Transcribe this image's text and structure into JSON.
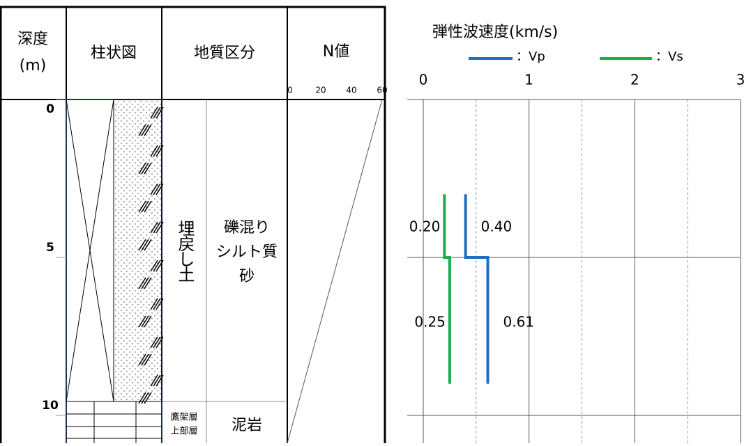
{
  "log": {
    "headers": {
      "depth": [
        "深度",
        "(m)"
      ],
      "column": "柱状図",
      "geology": "地質区分",
      "n_value": "N値"
    },
    "n_ticks": [
      0,
      20,
      40,
      60
    ],
    "layers": [
      {
        "unit": "埋戻し土",
        "lithology": [
          "礫混り",
          "シルト質",
          "砂"
        ]
      },
      {
        "unit": [
          "鷹架層",
          "上部層"
        ],
        "lithology": "泥岩"
      }
    ]
  },
  "chart_data": {
    "type": "step",
    "title": "弾性波速度(km/s)",
    "depth_bounds": [
      3,
      5,
      9
    ],
    "series": [
      {
        "name": "：Vp",
        "color": "#1f6fbf",
        "values": [
          0.4,
          0.61
        ],
        "value_labels": [
          "0.40",
          "0.61"
        ]
      },
      {
        "name": "：Vs",
        "color": "#1aae4e",
        "values": [
          0.2,
          0.25
        ],
        "value_labels": [
          "0.20",
          "0.25"
        ]
      }
    ],
    "xlim": [
      0,
      3
    ],
    "xticks": [
      0,
      1,
      2,
      3
    ],
    "minor_xticks": [
      0.5,
      1.5,
      2.5
    ],
    "ylim": [
      0,
      10.9
    ],
    "yticks": [
      0,
      5,
      10
    ],
    "grid": true
  }
}
